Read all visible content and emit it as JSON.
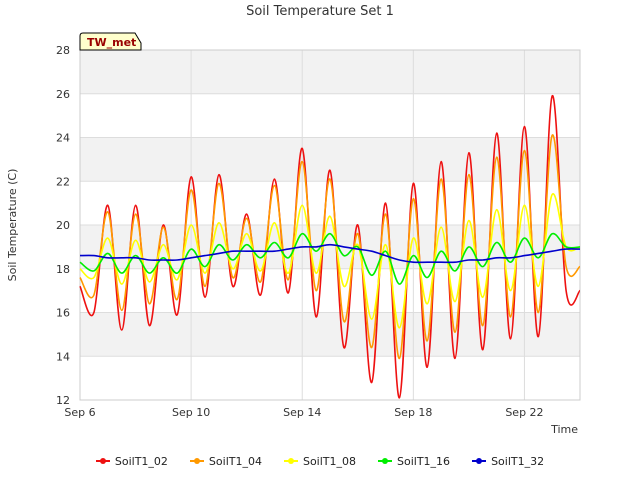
{
  "chart_data": {
    "type": "line",
    "title": "Soil Temperature Set 1",
    "xlabel": "Time",
    "ylabel": "Soil Temperature (C)",
    "annotation": "TW_met",
    "xlim": [
      "2023-09-06",
      "2023-09-24"
    ],
    "ylim": [
      12,
      28
    ],
    "x_ticks": [
      "Sep 6",
      "Sep 10",
      "Sep 14",
      "Sep 18",
      "Sep 22"
    ],
    "y_ticks": [
      12,
      14,
      16,
      18,
      20,
      22,
      24,
      26,
      28
    ],
    "grid": true,
    "legend_position": "bottom",
    "x": [
      "2023-09-06 00:00",
      "2023-09-06 12:00",
      "2023-09-07 00:00",
      "2023-09-07 12:00",
      "2023-09-08 00:00",
      "2023-09-08 12:00",
      "2023-09-09 00:00",
      "2023-09-09 12:00",
      "2023-09-10 00:00",
      "2023-09-10 12:00",
      "2023-09-11 00:00",
      "2023-09-11 12:00",
      "2023-09-12 00:00",
      "2023-09-12 12:00",
      "2023-09-13 00:00",
      "2023-09-13 12:00",
      "2023-09-14 00:00",
      "2023-09-14 12:00",
      "2023-09-15 00:00",
      "2023-09-15 12:00",
      "2023-09-16 00:00",
      "2023-09-16 12:00",
      "2023-09-17 00:00",
      "2023-09-17 12:00",
      "2023-09-18 00:00",
      "2023-09-18 12:00",
      "2023-09-19 00:00",
      "2023-09-19 12:00",
      "2023-09-20 00:00",
      "2023-09-20 12:00",
      "2023-09-21 00:00",
      "2023-09-21 12:00",
      "2023-09-22 00:00",
      "2023-09-22 12:00",
      "2023-09-23 00:00",
      "2023-09-23 12:00",
      "2023-09-24 00:00"
    ],
    "series": [
      {
        "name": "SoilT1_02",
        "color": "#ee1111",
        "values": [
          17.2,
          16.0,
          20.9,
          15.2,
          20.9,
          15.4,
          20.0,
          15.9,
          22.2,
          16.7,
          22.3,
          17.2,
          20.5,
          16.8,
          22.1,
          16.9,
          23.5,
          15.8,
          22.5,
          14.4,
          20.0,
          12.8,
          21.0,
          12.1,
          21.9,
          13.5,
          22.9,
          13.9,
          23.3,
          14.3,
          24.2,
          14.8,
          24.5,
          14.9,
          25.9,
          17.0,
          17.0
        ]
      },
      {
        "name": "SoilT1_04",
        "color": "#ff9900",
        "values": [
          17.6,
          16.8,
          20.6,
          16.1,
          20.5,
          16.4,
          19.9,
          16.6,
          21.6,
          17.2,
          21.9,
          17.6,
          20.3,
          17.4,
          21.8,
          17.5,
          22.9,
          17.0,
          22.1,
          15.6,
          19.6,
          14.4,
          20.5,
          13.9,
          21.2,
          14.7,
          22.1,
          15.1,
          22.3,
          15.4,
          23.1,
          15.8,
          23.4,
          16.0,
          24.1,
          18.1,
          18.1
        ]
      },
      {
        "name": "SoilT1_08",
        "color": "#ffff00",
        "values": [
          18.0,
          17.6,
          19.4,
          17.3,
          19.3,
          17.4,
          19.1,
          17.5,
          20.0,
          17.8,
          20.1,
          18.0,
          19.6,
          17.9,
          20.1,
          17.8,
          20.9,
          17.8,
          20.4,
          17.2,
          19.1,
          15.7,
          19.1,
          15.3,
          19.4,
          16.4,
          19.9,
          16.5,
          20.2,
          16.7,
          20.7,
          17.0,
          20.9,
          17.2,
          21.4,
          19.0,
          19.0
        ]
      },
      {
        "name": "SoilT1_16",
        "color": "#00ee00",
        "values": [
          18.3,
          17.9,
          18.7,
          17.8,
          18.6,
          17.8,
          18.5,
          17.8,
          18.9,
          18.1,
          19.1,
          18.4,
          19.1,
          18.5,
          19.2,
          18.5,
          19.6,
          18.8,
          19.6,
          18.6,
          19.0,
          17.7,
          18.8,
          17.3,
          18.6,
          17.6,
          18.8,
          17.9,
          19.0,
          18.1,
          19.2,
          18.3,
          19.4,
          18.5,
          19.6,
          19.0,
          19.0
        ]
      },
      {
        "name": "SoilT1_32",
        "color": "#0000cc",
        "values": [
          18.6,
          18.6,
          18.5,
          18.5,
          18.5,
          18.4,
          18.4,
          18.4,
          18.5,
          18.6,
          18.7,
          18.8,
          18.8,
          18.8,
          18.8,
          18.9,
          19.0,
          19.0,
          19.1,
          19.0,
          18.9,
          18.8,
          18.6,
          18.4,
          18.3,
          18.3,
          18.3,
          18.3,
          18.4,
          18.4,
          18.5,
          18.5,
          18.6,
          18.7,
          18.8,
          18.9,
          18.9
        ]
      }
    ]
  }
}
